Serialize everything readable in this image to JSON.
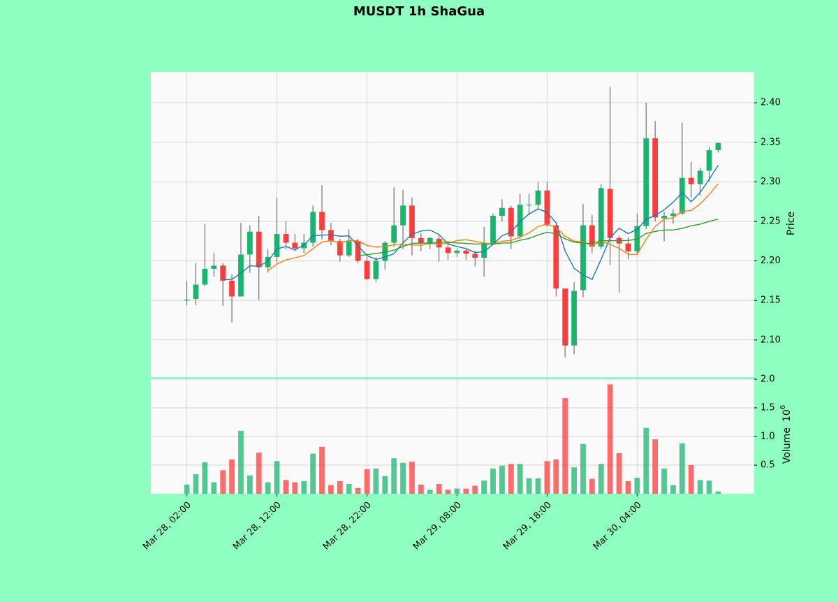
{
  "chart_data": {
    "type": "candlestick",
    "title": "MUSDT 1h ShaGua",
    "ylabel": "Price",
    "volume_label": "Volume",
    "volume_offset_base": "10",
    "volume_offset_exponent": "6",
    "x": [
      "Mar 28, 02:00",
      "Mar 28, 03:00",
      "Mar 28, 04:00",
      "Mar 28, 05:00",
      "Mar 28, 06:00",
      "Mar 28, 07:00",
      "Mar 28, 08:00",
      "Mar 28, 09:00",
      "Mar 28, 10:00",
      "Mar 28, 11:00",
      "Mar 28, 12:00",
      "Mar 28, 13:00",
      "Mar 28, 14:00",
      "Mar 28, 15:00",
      "Mar 28, 16:00",
      "Mar 28, 17:00",
      "Mar 28, 18:00",
      "Mar 28, 19:00",
      "Mar 28, 20:00",
      "Mar 28, 21:00",
      "Mar 28, 22:00",
      "Mar 28, 23:00",
      "Mar 29, 00:00",
      "Mar 29, 01:00",
      "Mar 29, 02:00",
      "Mar 29, 03:00",
      "Mar 29, 04:00",
      "Mar 29, 05:00",
      "Mar 29, 06:00",
      "Mar 29, 07:00",
      "Mar 29, 08:00",
      "Mar 29, 09:00",
      "Mar 29, 10:00",
      "Mar 29, 11:00",
      "Mar 29, 12:00",
      "Mar 29, 13:00",
      "Mar 29, 14:00",
      "Mar 29, 15:00",
      "Mar 29, 16:00",
      "Mar 29, 17:00",
      "Mar 29, 18:00",
      "Mar 29, 19:00",
      "Mar 29, 20:00",
      "Mar 29, 21:00",
      "Mar 29, 22:00",
      "Mar 29, 23:00",
      "Mar 30, 00:00",
      "Mar 30, 01:00",
      "Mar 30, 02:00",
      "Mar 30, 03:00",
      "Mar 30, 04:00",
      "Mar 30, 05:00",
      "Mar 30, 06:00",
      "Mar 30, 07:00",
      "Mar 30, 08:00",
      "Mar 30, 09:00",
      "Mar 30, 10:00",
      "Mar 30, 11:00",
      "Mar 30, 12:00",
      "Mar 30, 13:00"
    ],
    "open": [
      2.15,
      2.152,
      2.17,
      2.19,
      2.194,
      2.175,
      2.155,
      2.208,
      2.237,
      2.192,
      2.205,
      2.234,
      2.223,
      2.216,
      2.223,
      2.262,
      2.239,
      2.225,
      2.207,
      2.225,
      2.2,
      2.177,
      2.2,
      2.223,
      2.245,
      2.27,
      2.229,
      2.222,
      2.228,
      2.217,
      2.21,
      2.213,
      2.209,
      2.204,
      2.222,
      2.257,
      2.267,
      2.231,
      2.27,
      2.271,
      2.289,
      2.245,
      2.165,
      2.093,
      2.163,
      2.245,
      2.218,
      2.291,
      2.229,
      2.222,
      2.212,
      2.244,
      2.355,
      2.254,
      2.257,
      2.26,
      2.305,
      2.297,
      2.314,
      2.34
    ],
    "high": [
      2.175,
      2.197,
      2.247,
      2.21,
      2.197,
      2.183,
      2.248,
      2.245,
      2.257,
      2.215,
      2.28,
      2.25,
      2.234,
      2.234,
      2.27,
      2.296,
      2.248,
      2.228,
      2.24,
      2.228,
      2.205,
      2.205,
      2.225,
      2.293,
      2.29,
      2.28,
      2.235,
      2.23,
      2.232,
      2.225,
      2.215,
      2.215,
      2.213,
      2.243,
      2.26,
      2.278,
      2.27,
      2.285,
      2.285,
      2.3,
      2.3,
      2.245,
      2.165,
      2.173,
      2.272,
      2.258,
      2.297,
      2.42,
      2.232,
      2.23,
      2.26,
      2.4,
      2.377,
      2.262,
      2.265,
      2.375,
      2.325,
      2.318,
      2.344,
      2.35
    ],
    "low": [
      2.144,
      2.144,
      2.168,
      2.18,
      2.143,
      2.122,
      2.155,
      2.185,
      2.151,
      2.185,
      2.198,
      2.215,
      2.212,
      2.21,
      2.218,
      2.227,
      2.22,
      2.199,
      2.205,
      2.197,
      2.176,
      2.174,
      2.189,
      2.218,
      2.215,
      2.207,
      2.212,
      2.215,
      2.199,
      2.201,
      2.205,
      2.201,
      2.193,
      2.18,
      2.22,
      2.25,
      2.215,
      2.228,
      2.258,
      2.265,
      2.243,
      2.155,
      2.078,
      2.082,
      2.154,
      2.21,
      2.215,
      2.195,
      2.16,
      2.202,
      2.21,
      2.24,
      2.25,
      2.225,
      2.247,
      2.258,
      2.28,
      2.282,
      2.3,
      2.337
    ],
    "close": [
      2.151,
      2.17,
      2.19,
      2.194,
      2.175,
      2.155,
      2.208,
      2.237,
      2.192,
      2.205,
      2.234,
      2.223,
      2.216,
      2.223,
      2.262,
      2.239,
      2.225,
      2.207,
      2.225,
      2.2,
      2.177,
      2.2,
      2.223,
      2.245,
      2.27,
      2.229,
      2.222,
      2.229,
      2.217,
      2.21,
      2.213,
      2.209,
      2.204,
      2.222,
      2.257,
      2.267,
      2.231,
      2.271,
      2.271,
      2.289,
      2.245,
      2.165,
      2.093,
      2.162,
      2.245,
      2.218,
      2.292,
      2.229,
      2.222,
      2.212,
      2.244,
      2.355,
      2.255,
      2.257,
      2.26,
      2.305,
      2.297,
      2.314,
      2.34,
      2.349
    ],
    "volume": [
      0.16,
      0.34,
      0.55,
      0.2,
      0.41,
      0.6,
      1.1,
      0.32,
      0.72,
      0.2,
      0.57,
      0.24,
      0.2,
      0.22,
      0.7,
      0.82,
      0.15,
      0.22,
      0.17,
      0.1,
      0.43,
      0.44,
      0.31,
      0.62,
      0.54,
      0.56,
      0.16,
      0.07,
      0.17,
      0.07,
      0.09,
      0.09,
      0.14,
      0.23,
      0.44,
      0.49,
      0.52,
      0.52,
      0.27,
      0.27,
      0.57,
      0.6,
      1.67,
      0.46,
      0.87,
      0.26,
      0.52,
      1.91,
      0.71,
      0.22,
      0.28,
      1.15,
      0.95,
      0.44,
      0.15,
      0.88,
      0.5,
      0.24,
      0.23,
      0.04
    ],
    "up_color": "#18b56d",
    "down_color": "#ff3b3b",
    "mav": [
      5,
      10,
      20
    ],
    "mav_colors": [
      "#1f77b4",
      "#ff7f0e",
      "#2ca02c"
    ],
    "xlim": [
      -4,
      63
    ],
    "xticks": [
      {
        "value": 0,
        "label": "Mar 28, 02:00"
      },
      {
        "value": 10,
        "label": "Mar 28, 12:00"
      },
      {
        "value": 20,
        "label": "Mar 28, 22:00"
      },
      {
        "value": 30,
        "label": "Mar 29, 08:00"
      },
      {
        "value": 40,
        "label": "Mar 29, 18:00"
      },
      {
        "value": 50,
        "label": "Mar 30, 04:00"
      }
    ],
    "ylim": [
      2.053,
      2.439
    ],
    "yticks": [
      {
        "value": 2.1,
        "label": "2.10"
      },
      2.15,
      {
        "value": 2.2,
        "label": "2.20"
      },
      2.25,
      {
        "value": 2.3,
        "label": "2.30"
      },
      2.35,
      {
        "value": 2.4,
        "label": "2.40"
      }
    ],
    "volume_ylim": [
      0,
      2.0
    ],
    "volume_yticks": [
      0.5,
      {
        "value": 1,
        "label": "1.0"
      },
      1.5,
      {
        "value": 2,
        "label": "2.0"
      }
    ],
    "grid": true
  }
}
